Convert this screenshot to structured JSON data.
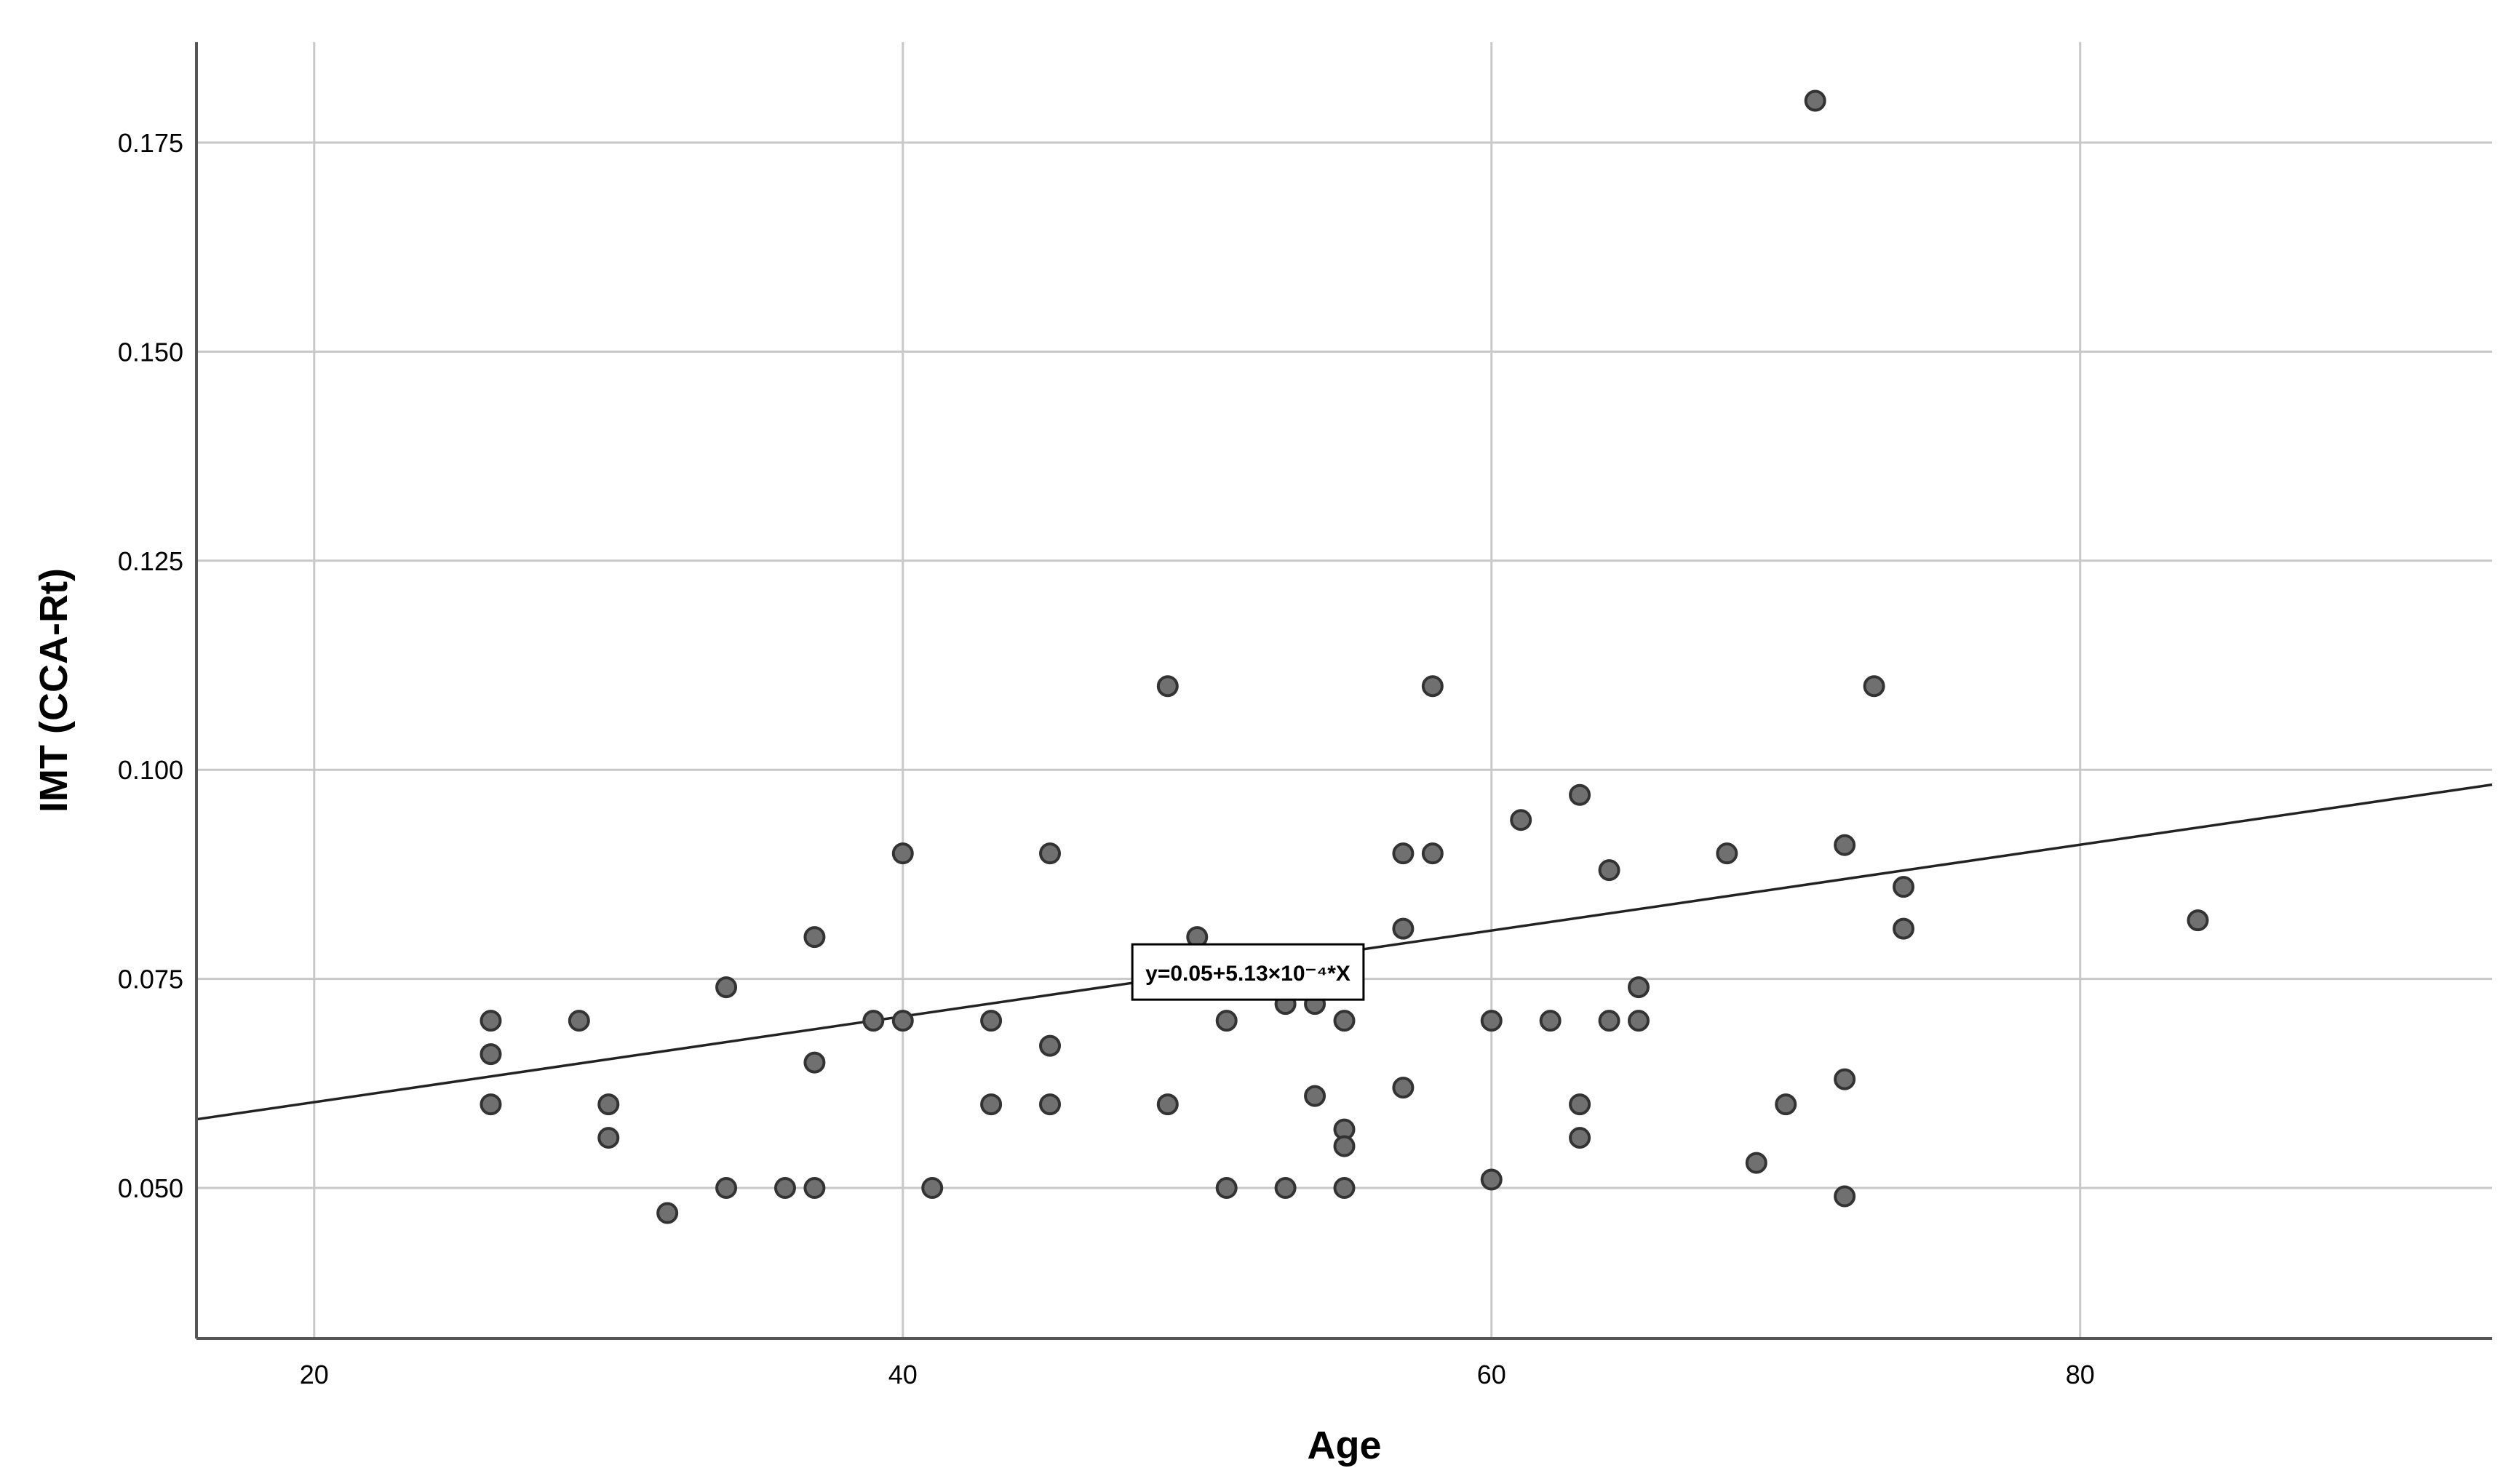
{
  "chart_data": {
    "type": "scatter",
    "xlabel": "Age",
    "ylabel": "IMT (CCA-Rt)",
    "xlim": [
      16,
      94
    ],
    "ylim": [
      0.032,
      0.187
    ],
    "x_ticks": [
      20,
      40,
      60,
      80
    ],
    "x_tick_labels": [
      "20",
      "40",
      "60",
      "80"
    ],
    "y_ticks": [
      0.05,
      0.075,
      0.1,
      0.125,
      0.15,
      0.175
    ],
    "y_tick_labels": [
      "0.050",
      "0.075",
      "0.100",
      "0.125",
      "0.150",
      "0.175"
    ],
    "grid": true,
    "colors": {
      "marker_fill": "#707070",
      "marker_stroke": "#333333",
      "grid": "#c8c8c8",
      "axis": "#555555",
      "line": "#222222"
    },
    "fit_line": {
      "intercept": 0.05,
      "slope": 0.000513,
      "label": "y=0.05+5.13×10⁻⁴*X",
      "label_anchor": [
        52,
        0.08
      ]
    },
    "points": [
      [
        26,
        0.07
      ],
      [
        26,
        0.066
      ],
      [
        26,
        0.06
      ],
      [
        29,
        0.07
      ],
      [
        30,
        0.06
      ],
      [
        30,
        0.056
      ],
      [
        32,
        0.047
      ],
      [
        34,
        0.074
      ],
      [
        34,
        0.05
      ],
      [
        36,
        0.05
      ],
      [
        37,
        0.08
      ],
      [
        37,
        0.065
      ],
      [
        37,
        0.05
      ],
      [
        39,
        0.07
      ],
      [
        40,
        0.09
      ],
      [
        40,
        0.07
      ],
      [
        41,
        0.05
      ],
      [
        43,
        0.07
      ],
      [
        43,
        0.06
      ],
      [
        45,
        0.09
      ],
      [
        45,
        0.067
      ],
      [
        45,
        0.06
      ],
      [
        49,
        0.11
      ],
      [
        49,
        0.06
      ],
      [
        50,
        0.08
      ],
      [
        51,
        0.07
      ],
      [
        51,
        0.05
      ],
      [
        53,
        0.072
      ],
      [
        53,
        0.05
      ],
      [
        54,
        0.072
      ],
      [
        54,
        0.061
      ],
      [
        55,
        0.07
      ],
      [
        55,
        0.057
      ],
      [
        55,
        0.055
      ],
      [
        55,
        0.05
      ],
      [
        57,
        0.09
      ],
      [
        57,
        0.081
      ],
      [
        57,
        0.062
      ],
      [
        58,
        0.11
      ],
      [
        58,
        0.09
      ],
      [
        60,
        0.07
      ],
      [
        60,
        0.051
      ],
      [
        61,
        0.094
      ],
      [
        62,
        0.07
      ],
      [
        63,
        0.097
      ],
      [
        63,
        0.06
      ],
      [
        63,
        0.056
      ],
      [
        64,
        0.088
      ],
      [
        64,
        0.07
      ],
      [
        65,
        0.074
      ],
      [
        65,
        0.07
      ],
      [
        68,
        0.09
      ],
      [
        69,
        0.053
      ],
      [
        70,
        0.06
      ],
      [
        71,
        0.18
      ],
      [
        72,
        0.091
      ],
      [
        72,
        0.063
      ],
      [
        72,
        0.049
      ],
      [
        73,
        0.11
      ],
      [
        74,
        0.086
      ],
      [
        74,
        0.081
      ],
      [
        84,
        0.082
      ]
    ]
  }
}
